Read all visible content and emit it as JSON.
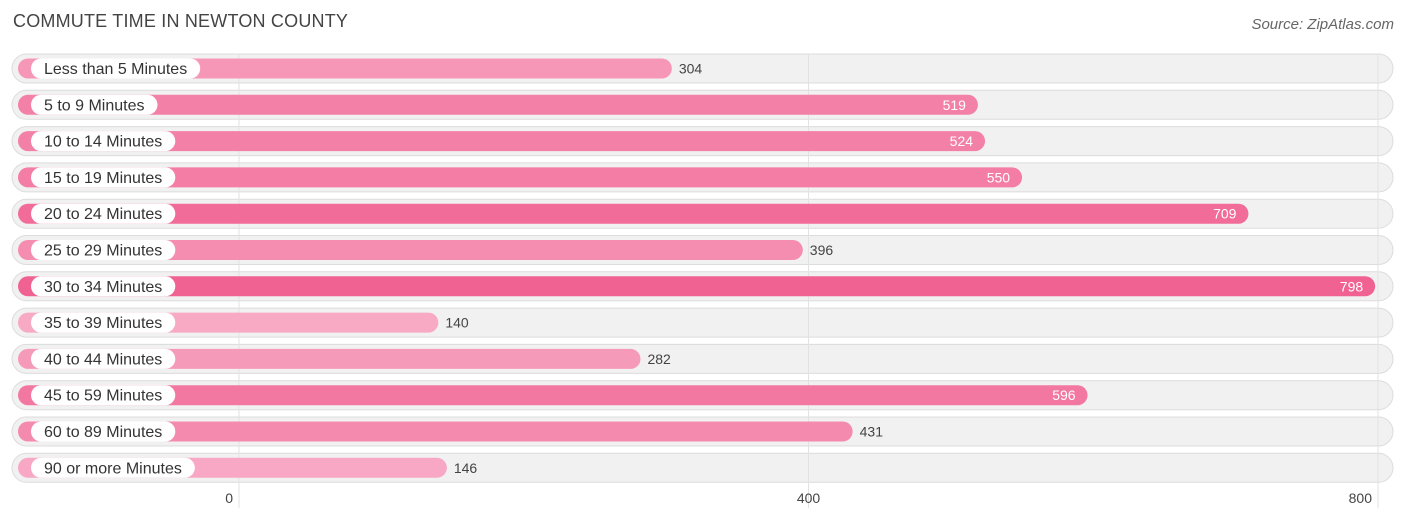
{
  "header": {
    "title": "COMMUTE TIME IN NEWTON COUNTY",
    "source": "Source: ZipAtlas.com"
  },
  "chart_data": {
    "type": "bar",
    "orientation": "horizontal",
    "title": "COMMUTE TIME IN NEWTON COUNTY",
    "xlabel": "",
    "ylabel": "",
    "xlim": [
      0,
      800
    ],
    "ticks": [
      0,
      400,
      800
    ],
    "grid": true,
    "colors": {
      "high": "#f06292",
      "low": "#f8a9c4"
    },
    "categories": [
      "Less than 5 Minutes",
      "5 to 9 Minutes",
      "10 to 14 Minutes",
      "15 to 19 Minutes",
      "20 to 24 Minutes",
      "25 to 29 Minutes",
      "30 to 34 Minutes",
      "35 to 39 Minutes",
      "40 to 44 Minutes",
      "45 to 59 Minutes",
      "60 to 89 Minutes",
      "90 or more Minutes"
    ],
    "values": [
      304,
      519,
      524,
      550,
      709,
      396,
      798,
      140,
      282,
      596,
      431,
      146
    ]
  }
}
